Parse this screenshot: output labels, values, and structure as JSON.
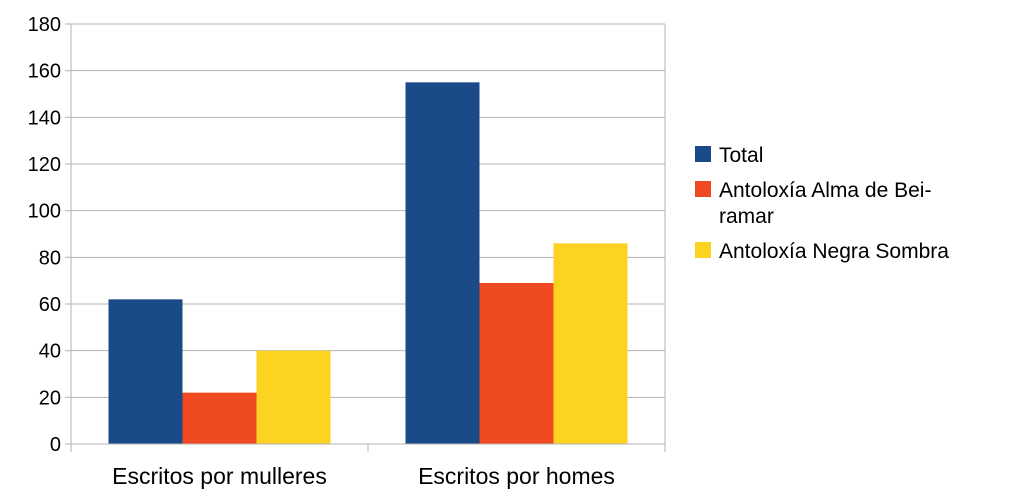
{
  "chart_data": {
    "type": "bar",
    "title": "",
    "xlabel": "",
    "ylabel": "",
    "categories": [
      "Escritos por mulleres",
      "Escritos por homes"
    ],
    "series": [
      {
        "name": "Total",
        "values": [
          62,
          155
        ],
        "color": "#1b4a88"
      },
      {
        "name": "Antoloxía Alma de Beiramar",
        "values": [
          22,
          69
        ],
        "color": "#f04a22"
      },
      {
        "name": "Antoloxía Negra Sombra",
        "values": [
          40,
          86
        ],
        "color": "#fdd321"
      }
    ],
    "ylim": [
      0,
      180
    ],
    "yticks": [
      0,
      20,
      40,
      60,
      80,
      100,
      120,
      140,
      160,
      180
    ],
    "grid": true,
    "legend_position": "right",
    "legend_lines": [
      [
        "Total"
      ],
      [
        "Antoloxía Alma de Bei-",
        "ramar"
      ],
      [
        "Antoloxía Negra Sombra"
      ]
    ]
  }
}
